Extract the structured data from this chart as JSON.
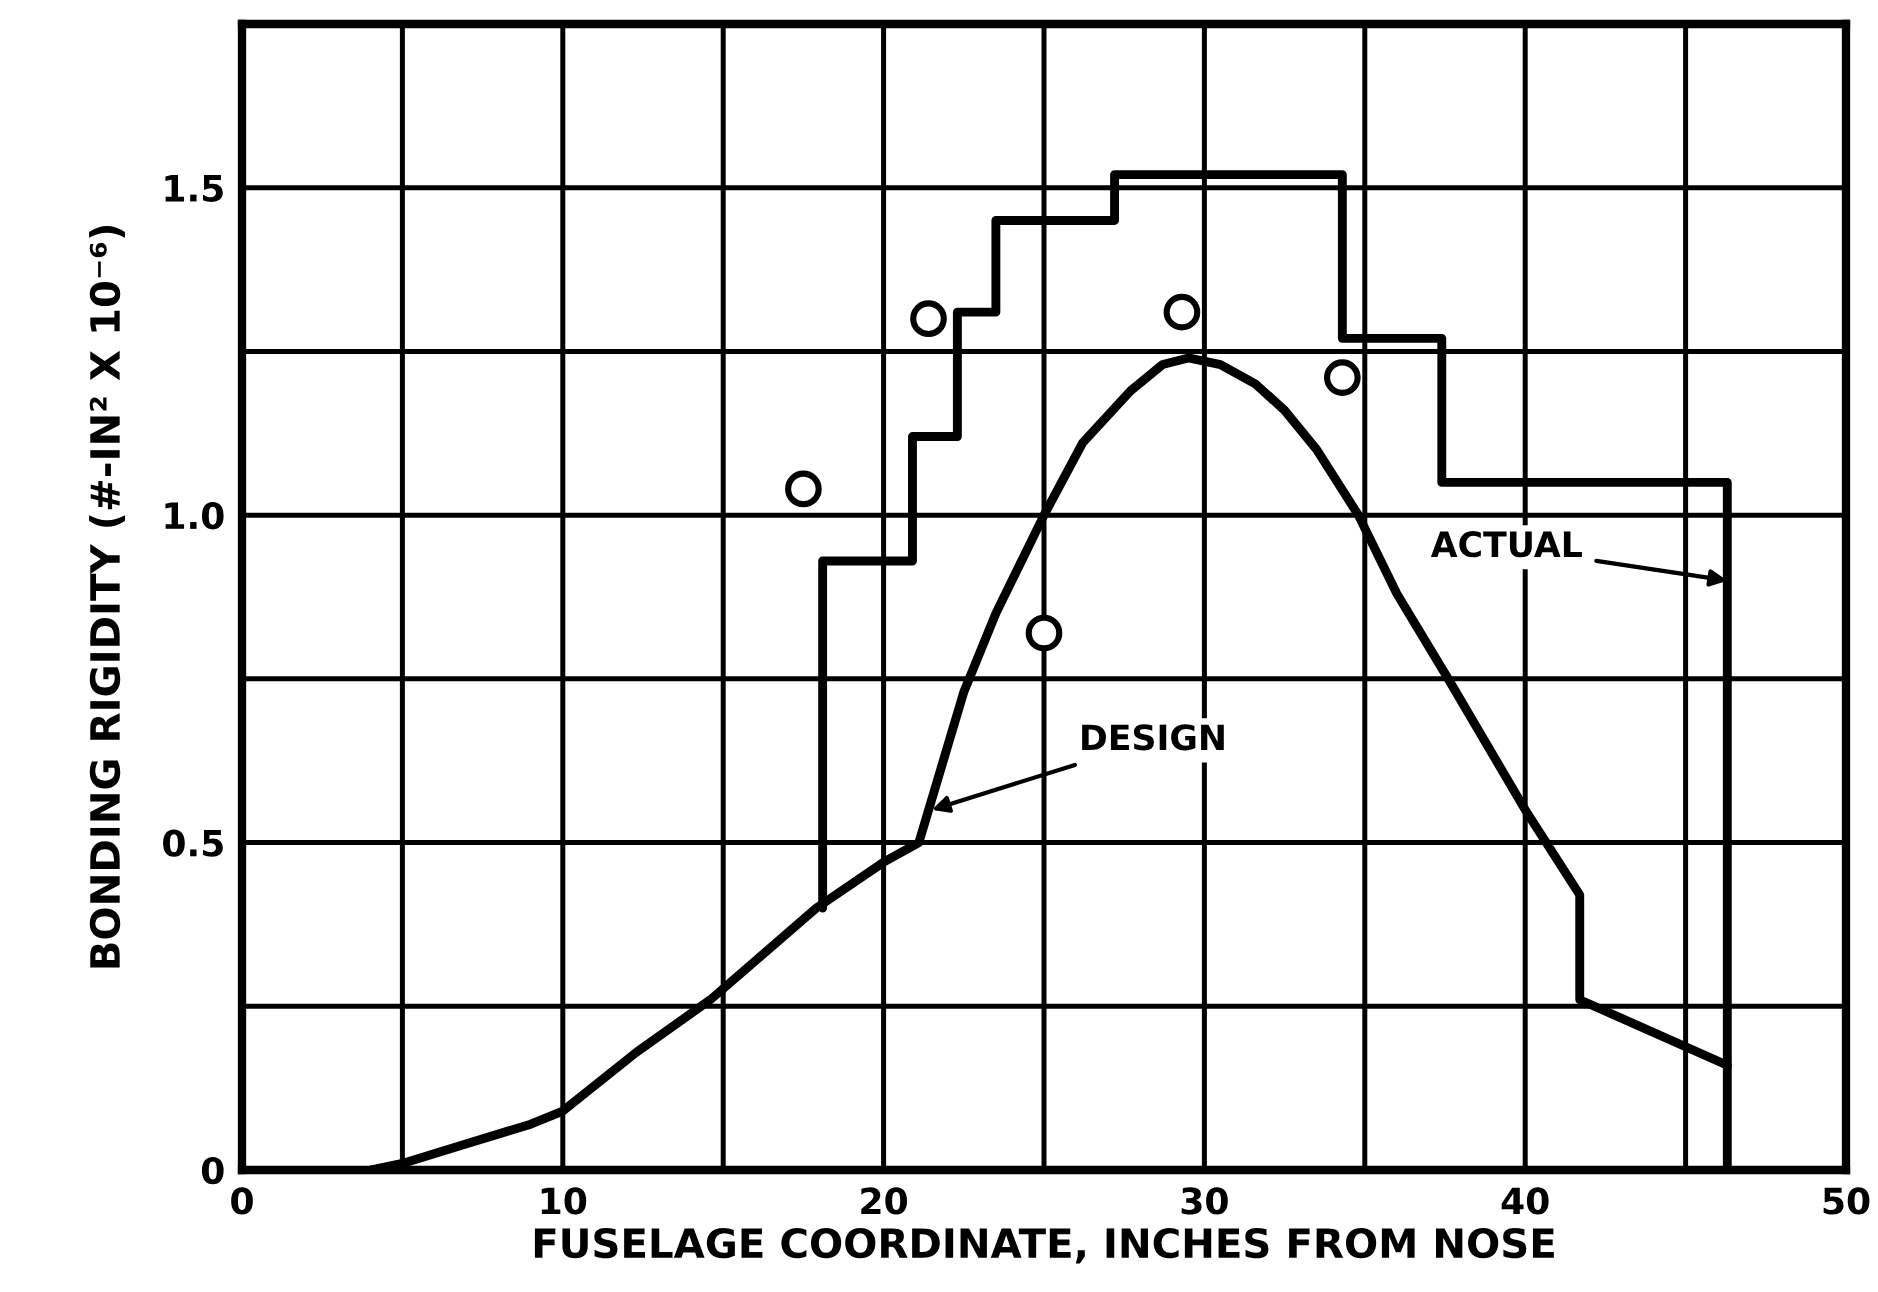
{
  "chart_data": {
    "type": "line",
    "xlabel": "FUSELAGE COORDINATE, INCHES FROM NOSE",
    "ylabel": "BONDING RIGIDITY (#-IN² X 10⁻⁶)",
    "xlim": [
      0,
      50
    ],
    "ylim": [
      0,
      1.75
    ],
    "xticks": [
      0,
      {
        "value": 5,
        "label": null
      },
      10,
      {
        "value": 15,
        "label": null
      },
      20,
      {
        "value": 25,
        "label": null
      },
      30,
      {
        "value": 35,
        "label": null
      },
      40,
      {
        "value": 45,
        "label": null
      },
      50
    ],
    "yticks": [
      0,
      {
        "value": 0.25,
        "label": null
      },
      0.5,
      {
        "value": 0.75,
        "label": null
      },
      {
        "value": 1.0,
        "label": "1.0"
      },
      {
        "value": 1.25,
        "label": null
      },
      1.5
    ],
    "grid": true,
    "line_style": "solid",
    "series": [
      {
        "color": "#000000",
        "x": [
          4.0,
          5.0,
          7.0,
          9.0,
          10.0,
          12.3,
          14.6,
          17.9,
          20.0,
          21.1,
          22.5,
          23.5,
          25.0,
          26.2,
          27.7,
          28.7,
          29.5,
          30.5,
          31.6,
          32.5,
          33.5,
          34.8,
          36.0,
          37.6,
          40.0,
          41.7,
          41.7,
          46.3
        ],
        "values": [
          0.0,
          0.01,
          0.04,
          0.07,
          0.09,
          0.18,
          0.26,
          0.4,
          0.47,
          0.5,
          0.73,
          0.85,
          1.0,
          1.11,
          1.19,
          1.23,
          1.24,
          1.23,
          1.2,
          1.16,
          1.1,
          1.0,
          0.88,
          0.75,
          0.55,
          0.42,
          0.26,
          0.16
        ]
      },
      {
        "color": "#000000",
        "x": [
          18.1,
          18.1,
          20.9,
          20.9,
          22.3,
          22.3,
          23.5,
          23.5,
          27.2,
          27.2,
          34.3,
          34.3,
          37.4,
          37.4,
          46.3,
          46.3
        ],
        "values": [
          0.4,
          0.93,
          0.93,
          1.12,
          1.12,
          1.31,
          1.31,
          1.45,
          1.45,
          1.52,
          1.52,
          1.27,
          1.27,
          1.05,
          1.05,
          0.0
        ]
      },
      {
        "type": "scatter",
        "marker": "circle",
        "color": "#000000",
        "x": [
          17.5,
          21.4,
          25.0,
          29.3,
          34.3
        ],
        "values": [
          1.04,
          1.3,
          0.82,
          1.31,
          1.21
        ]
      }
    ],
    "annotations": [
      {
        "text": "DESIGN",
        "x": 21.5,
        "y": 0.55
      },
      {
        "text": "ACTUAL",
        "x": 46.3,
        "y": 0.9
      }
    ]
  }
}
